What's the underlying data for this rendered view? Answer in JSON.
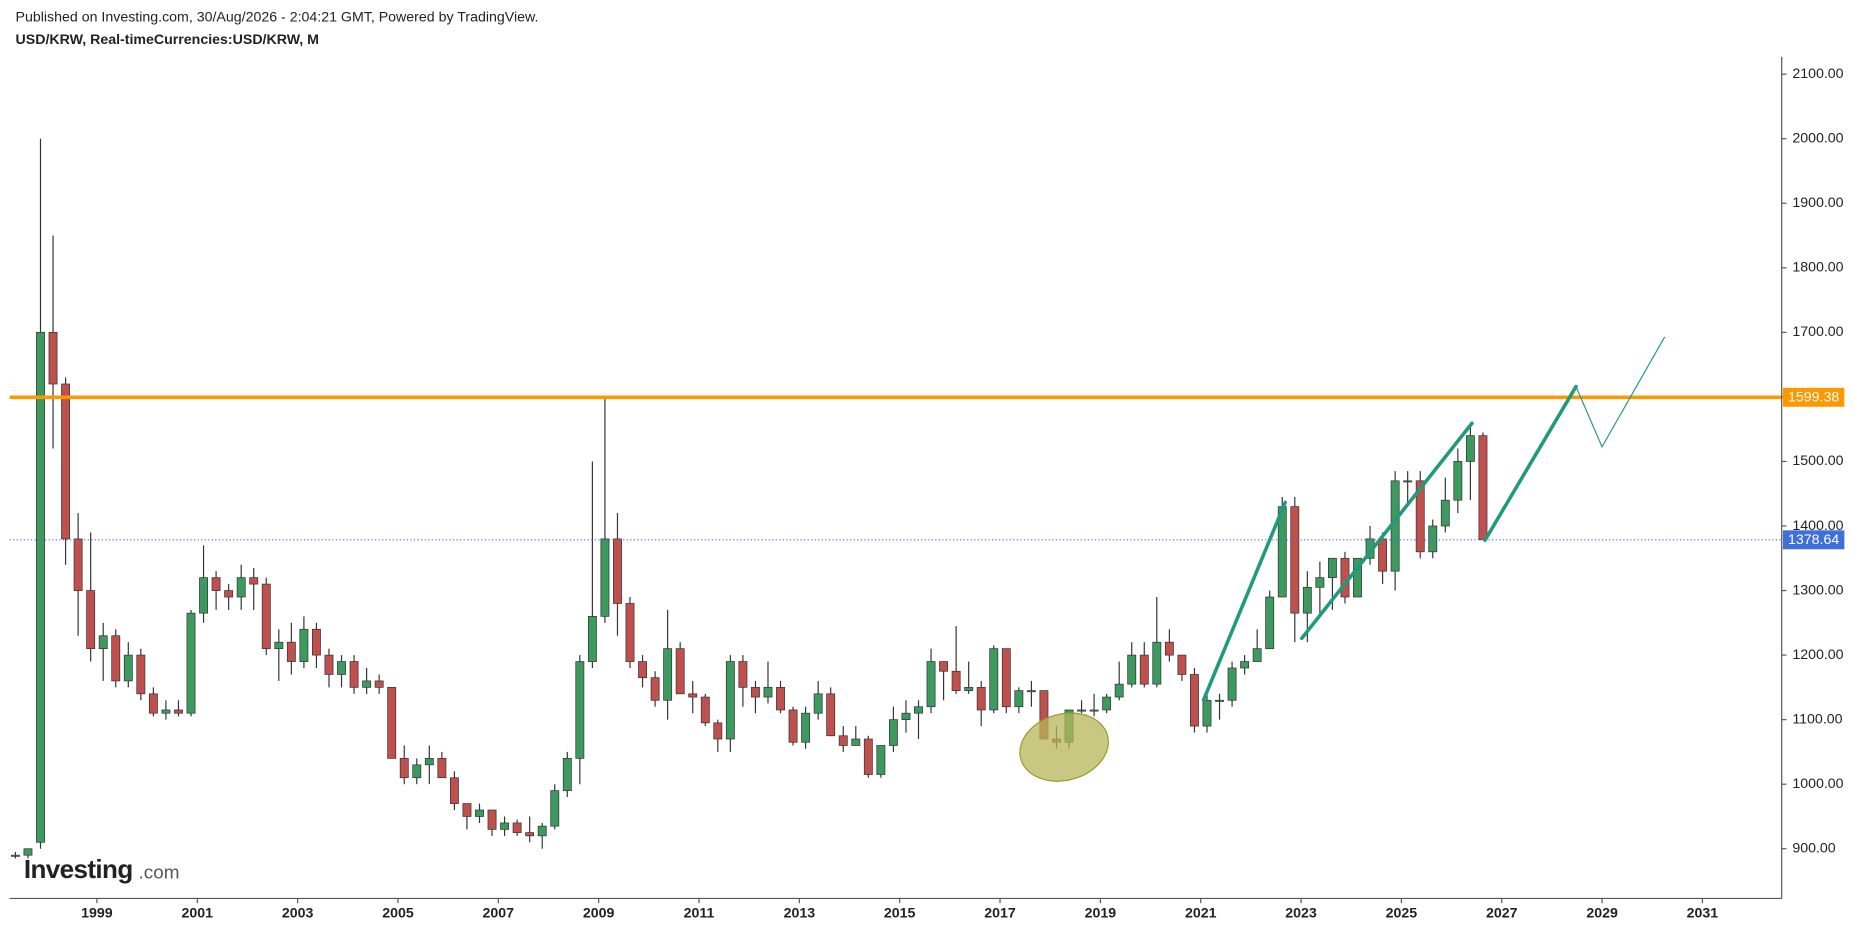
{
  "chart_data": {
    "type": "candlestick",
    "subtitle": "Published on Investing.com, 30/Aug/2026 - 2:04:21 GMT, Powered by TradingView.",
    "title": "USD/KRW, Real-timeCurrencies:USD/KRW, M",
    "logo": {
      "main": "Investing",
      "suffix": ".com"
    },
    "up_color": "#3c9a5f",
    "down_color": "#c0504d",
    "x": [
      1997.375,
      1997.625,
      1997.875,
      1998.125,
      1998.375,
      1998.625,
      1998.875,
      1999.125,
      1999.375,
      1999.625,
      1999.875,
      2000.125,
      2000.375,
      2000.625,
      2000.875,
      2001.125,
      2001.375,
      2001.625,
      2001.875,
      2002.125,
      2002.375,
      2002.625,
      2002.875,
      2003.125,
      2003.375,
      2003.625,
      2003.875,
      2004.125,
      2004.375,
      2004.625,
      2004.875,
      2005.125,
      2005.375,
      2005.625,
      2005.875,
      2006.125,
      2006.375,
      2006.625,
      2006.875,
      2007.125,
      2007.375,
      2007.625,
      2007.875,
      2008.125,
      2008.375,
      2008.625,
      2008.875,
      2009.125,
      2009.375,
      2009.625,
      2009.875,
      2010.125,
      2010.375,
      2010.625,
      2010.875,
      2011.125,
      2011.375,
      2011.625,
      2011.875,
      2012.125,
      2012.375,
      2012.625,
      2012.875,
      2013.125,
      2013.375,
      2013.625,
      2013.875,
      2014.125,
      2014.375,
      2014.625,
      2014.875,
      2015.125,
      2015.375,
      2015.625,
      2015.875,
      2016.125,
      2016.375,
      2016.625,
      2016.875,
      2017.125,
      2017.375,
      2017.625,
      2017.875,
      2018.125,
      2018.375,
      2018.625,
      2018.875,
      2019.125,
      2019.375,
      2019.625,
      2019.875,
      2020.125,
      2020.375,
      2020.625,
      2020.875,
      2021.125,
      2021.375,
      2021.625,
      2021.875,
      2022.125,
      2022.375,
      2022.625,
      2022.875,
      2023.125,
      2023.375,
      2023.625,
      2023.875,
      2024.125,
      2024.375,
      2024.625,
      2024.875,
      2025.125,
      2025.375,
      2025.625,
      2025.875,
      2026.125,
      2026.375,
      2026.625
    ],
    "open": [
      890,
      890,
      910,
      1700,
      1620,
      1380,
      1300,
      1210,
      1230,
      1160,
      1200,
      1140,
      1110,
      1115,
      1110,
      1265,
      1320,
      1300,
      1290,
      1320,
      1310,
      1210,
      1220,
      1190,
      1240,
      1200,
      1170,
      1190,
      1150,
      1160,
      1150,
      1040,
      1010,
      1030,
      1040,
      1010,
      970,
      950,
      960,
      930,
      940,
      925,
      920,
      935,
      990,
      1040,
      1190,
      1260,
      1380,
      1280,
      1190,
      1165,
      1130,
      1210,
      1140,
      1135,
      1095,
      1070,
      1190,
      1150,
      1135,
      1150,
      1115,
      1065,
      1110,
      1140,
      1075,
      1060,
      1070,
      1015,
      1060,
      1100,
      1110,
      1120,
      1190,
      1175,
      1145,
      1150,
      1115,
      1210,
      1120,
      1145,
      1145,
      1070,
      1065,
      1115,
      1115,
      1115,
      1135,
      1155,
      1200,
      1155,
      1220,
      1200,
      1170,
      1090,
      1130,
      1130,
      1180,
      1190,
      1210,
      1290,
      1430,
      1265,
      1305,
      1320,
      1350,
      1290,
      1350,
      1380,
      1330,
      1470,
      1470,
      1360,
      1400,
      1440,
      1500,
      1540
    ],
    "high": [
      895,
      900,
      2000,
      1850,
      1630,
      1420,
      1390,
      1250,
      1240,
      1220,
      1210,
      1150,
      1130,
      1130,
      1270,
      1370,
      1330,
      1310,
      1340,
      1335,
      1320,
      1240,
      1250,
      1260,
      1250,
      1210,
      1200,
      1200,
      1180,
      1170,
      1150,
      1060,
      1040,
      1060,
      1050,
      1020,
      970,
      970,
      960,
      950,
      945,
      950,
      940,
      1000,
      1050,
      1200,
      1500,
      1600,
      1420,
      1290,
      1200,
      1175,
      1270,
      1220,
      1160,
      1140,
      1100,
      1200,
      1200,
      1160,
      1190,
      1160,
      1120,
      1120,
      1160,
      1150,
      1090,
      1090,
      1075,
      1060,
      1120,
      1130,
      1130,
      1210,
      1190,
      1245,
      1190,
      1160,
      1215,
      1210,
      1150,
      1160,
      1145,
      1090,
      1115,
      1130,
      1140,
      1140,
      1190,
      1220,
      1220,
      1290,
      1240,
      1200,
      1180,
      1140,
      1140,
      1190,
      1200,
      1240,
      1300,
      1445,
      1445,
      1330,
      1345,
      1350,
      1360,
      1350,
      1400,
      1390,
      1485,
      1485,
      1485,
      1410,
      1475,
      1520,
      1560,
      1545
    ],
    "low": [
      885,
      885,
      900,
      1520,
      1340,
      1230,
      1190,
      1160,
      1150,
      1150,
      1130,
      1105,
      1100,
      1105,
      1105,
      1250,
      1270,
      1270,
      1270,
      1270,
      1200,
      1160,
      1170,
      1180,
      1180,
      1150,
      1150,
      1140,
      1140,
      1140,
      1040,
      1000,
      1000,
      1000,
      1010,
      960,
      930,
      940,
      920,
      920,
      920,
      910,
      900,
      930,
      980,
      1000,
      1180,
      1250,
      1230,
      1180,
      1150,
      1120,
      1100,
      1140,
      1110,
      1090,
      1050,
      1050,
      1120,
      1110,
      1125,
      1110,
      1060,
      1055,
      1100,
      1075,
      1050,
      1060,
      1010,
      1010,
      1050,
      1080,
      1070,
      1110,
      1130,
      1140,
      1140,
      1090,
      1110,
      1110,
      1110,
      1120,
      1070,
      1055,
      1055,
      1110,
      1105,
      1110,
      1130,
      1150,
      1150,
      1150,
      1190,
      1160,
      1080,
      1080,
      1100,
      1120,
      1170,
      1190,
      1210,
      1290,
      1220,
      1220,
      1260,
      1270,
      1280,
      1290,
      1340,
      1310,
      1300,
      1430,
      1350,
      1350,
      1390,
      1420,
      1440,
      1378.64
    ],
    "close": [
      890,
      900,
      1700,
      1620,
      1380,
      1300,
      1210,
      1230,
      1160,
      1200,
      1140,
      1110,
      1115,
      1110,
      1265,
      1320,
      1300,
      1290,
      1320,
      1310,
      1210,
      1220,
      1190,
      1240,
      1200,
      1170,
      1190,
      1150,
      1160,
      1150,
      1040,
      1010,
      1030,
      1040,
      1010,
      970,
      950,
      960,
      930,
      940,
      925,
      920,
      935,
      990,
      1040,
      1190,
      1260,
      1380,
      1280,
      1190,
      1165,
      1130,
      1210,
      1140,
      1135,
      1095,
      1070,
      1190,
      1150,
      1135,
      1150,
      1115,
      1065,
      1110,
      1140,
      1075,
      1060,
      1070,
      1015,
      1060,
      1100,
      1110,
      1120,
      1190,
      1175,
      1145,
      1150,
      1115,
      1210,
      1120,
      1145,
      1145,
      1070,
      1065,
      1115,
      1115,
      1115,
      1135,
      1155,
      1200,
      1155,
      1220,
      1200,
      1170,
      1090,
      1130,
      1130,
      1180,
      1190,
      1210,
      1290,
      1430,
      1265,
      1305,
      1320,
      1350,
      1290,
      1350,
      1380,
      1330,
      1470,
      1470,
      1360,
      1400,
      1440,
      1500,
      1540,
      1378.64
    ],
    "xlim": [
      1997.26,
      2032.58
    ],
    "ylim": [
      823,
      2127
    ],
    "xticks": [
      1999,
      2001,
      2003,
      2005,
      2007,
      2009,
      2011,
      2013,
      2015,
      2017,
      2019,
      2021,
      2023,
      2025,
      2027,
      2029,
      2031
    ],
    "yticks": [
      {
        "value": 900,
        "label": "900.00"
      },
      {
        "value": 1000,
        "label": "1000.00"
      },
      {
        "value": 1100,
        "label": "1100.00"
      },
      {
        "value": 1200,
        "label": "1200.00"
      },
      {
        "value": 1300,
        "label": "1300.00"
      },
      {
        "value": 1400,
        "label": "1400.00"
      },
      {
        "value": 1500,
        "label": "1500.00"
      },
      {
        "value": 1600,
        "label": "1600.00"
      },
      {
        "value": 1700,
        "label": "1700.00"
      },
      {
        "value": 1800,
        "label": "1800.00"
      },
      {
        "value": 1900,
        "label": "1900.00"
      },
      {
        "value": 2000,
        "label": "2000.00"
      },
      {
        "value": 2100,
        "label": "2100.00"
      }
    ],
    "hlines": [
      {
        "value": 1599.38,
        "color": "#ff9800",
        "style": "solid"
      },
      {
        "value": 1378.64,
        "color": "#3f6fd8",
        "style": "dotted"
      }
    ]
  }
}
